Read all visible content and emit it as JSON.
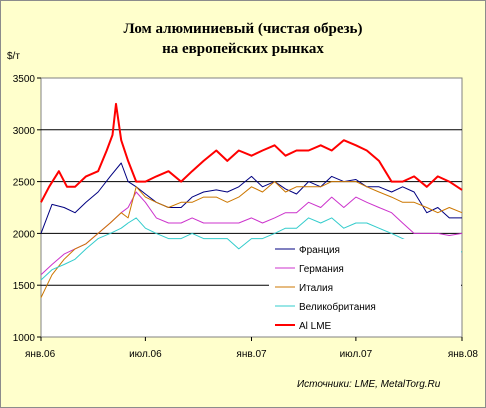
{
  "chart_data": {
    "type": "line",
    "title": "Лом алюминиевый (чистая обрезь)",
    "subtitle": "на европейских рынках",
    "ylabel": "$/т",
    "ylim": [
      1000,
      3500
    ],
    "yticks": [
      1000,
      1500,
      2000,
      2500,
      3000,
      3500
    ],
    "xlim": [
      "2006-01-01",
      "2008-01-01"
    ],
    "xticks": [
      {
        "date": "2006-01-01",
        "label": "янв.06"
      },
      {
        "date": "2006-07-01",
        "label": "июл.06"
      },
      {
        "date": "2007-01-01",
        "label": "янв.07"
      },
      {
        "date": "2007-07-01",
        "label": "июл.07"
      },
      {
        "date": "2008-01-01",
        "label": "янв.08"
      }
    ],
    "grid": "horizontal",
    "legend_position": "bottom-right",
    "source": "Источники: LME, MetalTorg.Ru",
    "series": [
      {
        "name": "Франция",
        "color": "#000080",
        "width": 1,
        "x": [
          "2006-01-01",
          "2006-01-20",
          "2006-02-10",
          "2006-03-01",
          "2006-03-20",
          "2006-04-10",
          "2006-05-01",
          "2006-05-20",
          "2006-06-01",
          "2006-06-15",
          "2006-07-01",
          "2006-07-20",
          "2006-08-10",
          "2006-09-01",
          "2006-09-20",
          "2006-10-10",
          "2006-11-01",
          "2006-11-20",
          "2006-12-10",
          "2007-01-01",
          "2007-01-20",
          "2007-02-10",
          "2007-03-01",
          "2007-03-20",
          "2007-04-10",
          "2007-05-01",
          "2007-05-20",
          "2007-06-10",
          "2007-07-01",
          "2007-07-20",
          "2007-08-10",
          "2007-09-01",
          "2007-09-20",
          "2007-10-10",
          "2007-11-01",
          "2007-11-20",
          "2007-12-10",
          "2008-01-01"
        ],
        "y": [
          2000,
          2280,
          2250,
          2200,
          2300,
          2400,
          2550,
          2680,
          2500,
          2450,
          2380,
          2300,
          2250,
          2250,
          2350,
          2400,
          2420,
          2400,
          2450,
          2550,
          2450,
          2500,
          2430,
          2380,
          2500,
          2450,
          2550,
          2500,
          2520,
          2450,
          2450,
          2400,
          2450,
          2400,
          2200,
          2250,
          2150,
          2150
        ]
      },
      {
        "name": "Германия",
        "color": "#cc33cc",
        "width": 1,
        "x": [
          "2006-01-01",
          "2006-01-20",
          "2006-02-10",
          "2006-03-01",
          "2006-03-20",
          "2006-04-10",
          "2006-05-01",
          "2006-05-20",
          "2006-06-01",
          "2006-06-15",
          "2006-07-01",
          "2006-07-20",
          "2006-08-10",
          "2006-09-01",
          "2006-09-20",
          "2006-10-10",
          "2006-11-01",
          "2006-11-20",
          "2006-12-10",
          "2007-01-01",
          "2007-01-20",
          "2007-02-10",
          "2007-03-01",
          "2007-03-20",
          "2007-04-10",
          "2007-05-01",
          "2007-05-20",
          "2007-06-10",
          "2007-07-01",
          "2007-07-20",
          "2007-08-10",
          "2007-09-01",
          "2007-09-20",
          "2007-10-10",
          "2007-11-01",
          "2007-11-20",
          "2007-12-10",
          "2008-01-01"
        ],
        "y": [
          1600,
          1700,
          1800,
          1850,
          1900,
          2000,
          2100,
          2200,
          2250,
          2400,
          2300,
          2150,
          2100,
          2100,
          2150,
          2100,
          2100,
          2100,
          2100,
          2150,
          2100,
          2150,
          2200,
          2200,
          2300,
          2250,
          2350,
          2250,
          2350,
          2300,
          2250,
          2200,
          2100,
          2000,
          2000,
          2000,
          1980,
          2000
        ]
      },
      {
        "name": "Италия",
        "color": "#cc7700",
        "width": 1,
        "x": [
          "2006-01-01",
          "2006-01-20",
          "2006-02-10",
          "2006-03-01",
          "2006-03-20",
          "2006-04-10",
          "2006-05-01",
          "2006-05-20",
          "2006-06-01",
          "2006-06-15",
          "2006-07-01",
          "2006-07-20",
          "2006-08-10",
          "2006-09-01",
          "2006-09-20",
          "2006-10-10",
          "2006-11-01",
          "2006-11-20",
          "2006-12-10",
          "2007-01-01",
          "2007-01-20",
          "2007-02-10",
          "2007-03-01",
          "2007-03-20",
          "2007-04-10",
          "2007-05-01",
          "2007-05-20",
          "2007-06-10",
          "2007-07-01",
          "2007-07-20",
          "2007-08-10",
          "2007-09-01",
          "2007-09-20",
          "2007-10-10",
          "2007-11-01",
          "2007-11-20",
          "2007-12-10",
          "2008-01-01"
        ],
        "y": [
          1380,
          1600,
          1750,
          1850,
          1900,
          2000,
          2100,
          2200,
          2150,
          2450,
          2350,
          2300,
          2250,
          2300,
          2300,
          2350,
          2350,
          2300,
          2350,
          2450,
          2400,
          2500,
          2400,
          2450,
          2450,
          2450,
          2500,
          2500,
          2500,
          2450,
          2400,
          2350,
          2300,
          2300,
          2250,
          2200,
          2250,
          2200
        ]
      },
      {
        "name": "Великобритания",
        "color": "#33cccc",
        "width": 1,
        "x": [
          "2006-01-01",
          "2006-01-20",
          "2006-02-10",
          "2006-03-01",
          "2006-03-20",
          "2006-04-10",
          "2006-05-01",
          "2006-05-20",
          "2006-06-01",
          "2006-06-15",
          "2006-07-01",
          "2006-07-20",
          "2006-08-10",
          "2006-09-01",
          "2006-09-20",
          "2006-10-10",
          "2006-11-01",
          "2006-11-20",
          "2006-12-10",
          "2007-01-01",
          "2007-01-20",
          "2007-02-10",
          "2007-03-01",
          "2007-03-20",
          "2007-04-10",
          "2007-05-01",
          "2007-05-20",
          "2007-06-10",
          "2007-07-01",
          "2007-07-20",
          "2007-08-10",
          "2007-09-01",
          "2007-09-20",
          "2007-10-10",
          "2007-11-01",
          "2007-11-20",
          "2007-12-10",
          "2008-01-01"
        ],
        "y": [
          1550,
          1650,
          1700,
          1750,
          1850,
          1950,
          2000,
          2050,
          2100,
          2150,
          2050,
          2000,
          1950,
          1950,
          2000,
          1950,
          1950,
          1950,
          1850,
          1950,
          1950,
          2000,
          2050,
          2050,
          2150,
          2100,
          2150,
          2050,
          2100,
          2100,
          2050,
          2000,
          1950,
          1900,
          1850,
          1850,
          1850,
          1820
        ]
      },
      {
        "name": "Al LME",
        "color": "#ff0000",
        "width": 2,
        "x": [
          "2006-01-01",
          "2006-01-15",
          "2006-02-01",
          "2006-02-15",
          "2006-03-01",
          "2006-03-20",
          "2006-04-10",
          "2006-04-25",
          "2006-05-05",
          "2006-05-11",
          "2006-05-20",
          "2006-06-01",
          "2006-06-15",
          "2006-07-01",
          "2006-07-20",
          "2006-08-10",
          "2006-09-01",
          "2006-09-20",
          "2006-10-10",
          "2006-11-01",
          "2006-11-20",
          "2006-12-10",
          "2007-01-01",
          "2007-01-20",
          "2007-02-10",
          "2007-03-01",
          "2007-03-20",
          "2007-04-10",
          "2007-05-01",
          "2007-05-20",
          "2007-06-10",
          "2007-07-01",
          "2007-07-20",
          "2007-08-10",
          "2007-09-01",
          "2007-09-20",
          "2007-10-10",
          "2007-11-01",
          "2007-11-20",
          "2007-12-10",
          "2008-01-01"
        ],
        "y": [
          2300,
          2450,
          2600,
          2450,
          2450,
          2550,
          2600,
          2800,
          2950,
          3250,
          2900,
          2700,
          2500,
          2500,
          2550,
          2600,
          2500,
          2600,
          2700,
          2800,
          2700,
          2800,
          2750,
          2800,
          2850,
          2750,
          2800,
          2800,
          2850,
          2800,
          2900,
          2850,
          2800,
          2700,
          2500,
          2500,
          2550,
          2450,
          2550,
          2500,
          2420
        ]
      }
    ]
  }
}
